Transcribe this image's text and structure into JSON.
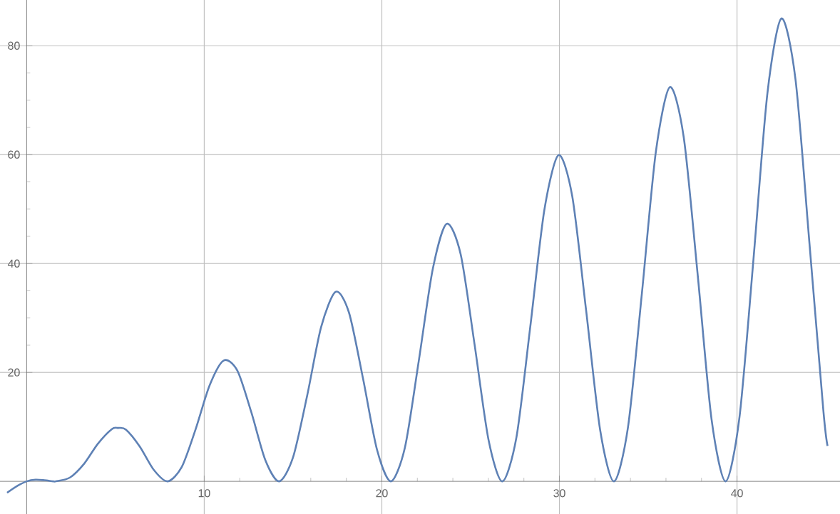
{
  "chart_data": {
    "type": "line",
    "xlim": [
      -1.5,
      45.8
    ],
    "ylim": [
      -6,
      88.4
    ],
    "xticks": [
      10,
      20,
      30,
      40
    ],
    "yticks": [
      20,
      40,
      60,
      80
    ],
    "grid": true,
    "marker": "none",
    "line_style": "solid",
    "series": [
      {
        "color": "#5e81b5",
        "x": [
          -1.1,
          -0.5,
          0,
          0.5,
          1,
          1.5,
          1.66,
          2.44,
          3.23,
          4.01,
          4.8,
          5.15,
          5.59,
          6.37,
          7.16,
          7.94,
          8.73,
          9.51,
          10.3,
          11.1,
          11.87,
          12.65,
          13.44,
          14.22,
          15.0,
          15.8,
          16.58,
          17.4,
          18.15,
          18.94,
          19.73,
          20.51,
          21.3,
          22.08,
          22.87,
          23.65,
          24.44,
          25.22,
          26.01,
          26.79,
          27.58,
          28.36,
          29.15,
          29.95,
          30.72,
          31.5,
          32.29,
          33.07,
          33.86,
          34.65,
          35.43,
          36.22,
          37.0,
          37.79,
          38.57,
          39.36,
          40.14,
          40.93,
          41.71,
          42.5,
          43.29,
          44.07,
          44.86,
          45.1
        ],
        "values": [
          -2.1,
          -0.8,
          0,
          0.3,
          0.2,
          0,
          0,
          0.7,
          3.2,
          6.9,
          9.6,
          9.8,
          9.5,
          6.4,
          2.1,
          0,
          2.6,
          9.5,
          17.6,
          22.2,
          20.3,
          12.7,
          3.9,
          0,
          4.4,
          15.8,
          28.3,
          34.8,
          31.0,
          18.9,
          5.8,
          0,
          6.2,
          22.1,
          39.0,
          47.3,
          41.7,
          25.2,
          7.6,
          0,
          8.1,
          28.4,
          49.8,
          59.9,
          52.4,
          31.5,
          9.5,
          0,
          9.9,
          34.7,
          60.5,
          72.4,
          63.2,
          37.8,
          11.3,
          0,
          11.8,
          40.9,
          71.2,
          85.0,
          73.9,
          44.1,
          13.1,
          6.5
        ]
      }
    ]
  }
}
